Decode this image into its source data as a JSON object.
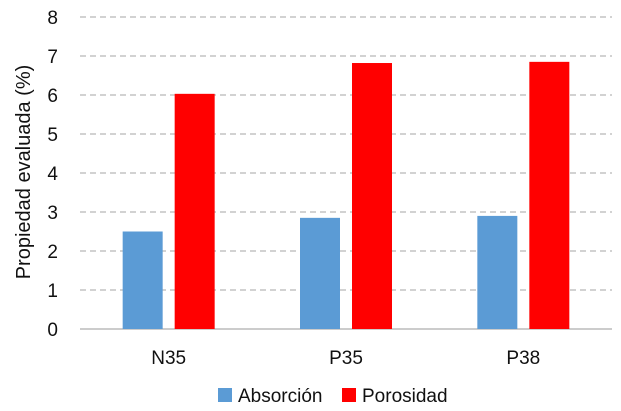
{
  "chart_data": {
    "type": "bar",
    "title": "",
    "xlabel": "",
    "ylabel": "Propiedad evaluada (%)",
    "categories": [
      "N35",
      "P35",
      "P38"
    ],
    "series": [
      {
        "name": "Absorción",
        "values": [
          2.5,
          2.85,
          2.9
        ],
        "color": "#5b9bd5"
      },
      {
        "name": "Porosidad",
        "values": [
          6.03,
          6.82,
          6.85
        ],
        "color": "#ff0000"
      }
    ],
    "ylim": [
      0,
      8
    ],
    "yticks": [
      "0",
      "1",
      "2",
      "3",
      "4",
      "5",
      "6",
      "7",
      "8"
    ],
    "grid": true,
    "legend": "bottom"
  }
}
